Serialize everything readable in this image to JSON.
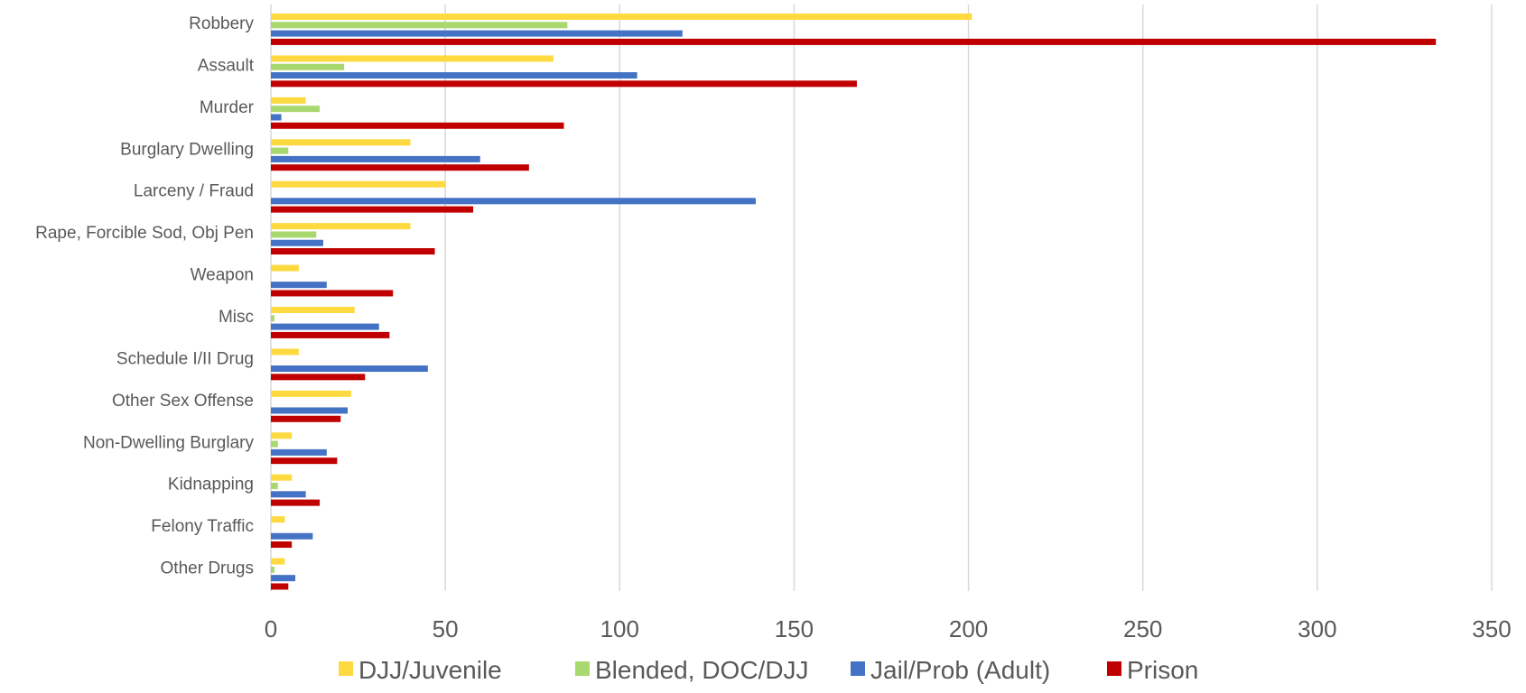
{
  "chart_data": {
    "type": "bar",
    "orientation": "horizontal",
    "categories": [
      "Robbery",
      "Assault",
      "Murder",
      "Burglary Dwelling",
      "Larceny / Fraud",
      "Rape, Forcible Sod, Obj Pen",
      "Weapon",
      "Misc",
      "Schedule I/II Drug",
      "Other Sex Offense",
      "Non-Dwelling Burglary",
      "Kidnapping",
      "Felony Traffic",
      "Other Drugs"
    ],
    "series": [
      {
        "name": "DJJ/Juvenile",
        "color": "#ffd940",
        "values": [
          201,
          81,
          10,
          40,
          50,
          40,
          8,
          24,
          8,
          23,
          6,
          6,
          4,
          4
        ]
      },
      {
        "name": "Blended, DOC/DJJ",
        "color": "#a9d86e",
        "values": [
          85,
          21,
          14,
          5,
          0,
          13,
          0,
          1,
          0,
          0,
          2,
          2,
          0,
          1
        ]
      },
      {
        "name": "Jail/Prob (Adult)",
        "color": "#4472c4",
        "values": [
          118,
          105,
          3,
          60,
          139,
          15,
          16,
          31,
          45,
          22,
          16,
          10,
          12,
          7
        ]
      },
      {
        "name": "Prison",
        "color": "#c00000",
        "values": [
          334,
          168,
          84,
          74,
          58,
          47,
          35,
          34,
          27,
          20,
          19,
          14,
          6,
          5
        ]
      }
    ],
    "xlim": [
      0,
      350
    ],
    "x_ticks": [
      0,
      50,
      100,
      150,
      200,
      250,
      300,
      350
    ],
    "grid": true,
    "legend_position": "bottom",
    "title": "",
    "xlabel": "",
    "ylabel": ""
  }
}
